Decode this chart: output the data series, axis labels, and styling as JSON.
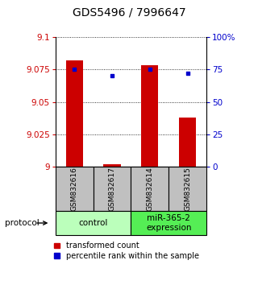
{
  "title": "GDS5496 / 7996647",
  "samples": [
    "GSM832616",
    "GSM832617",
    "GSM832614",
    "GSM832615"
  ],
  "bar_values": [
    9.082,
    9.002,
    9.078,
    9.038
  ],
  "percentile_values": [
    75,
    70,
    75,
    72
  ],
  "ylim_left": [
    9.0,
    9.1
  ],
  "ylim_right": [
    0,
    100
  ],
  "yticks_left": [
    9.0,
    9.025,
    9.05,
    9.075,
    9.1
  ],
  "ytick_labels_left": [
    "9",
    "9.025",
    "9.05",
    "9.075",
    "9.1"
  ],
  "yticks_right": [
    0,
    25,
    50,
    75,
    100
  ],
  "ytick_labels_right": [
    "0",
    "25",
    "50",
    "75",
    "100%"
  ],
  "bar_color": "#cc0000",
  "dot_color": "#0000cc",
  "groups": [
    {
      "label": "control",
      "samples": [
        0,
        1
      ],
      "color": "#bbffbb"
    },
    {
      "label": "miR-365-2\nexpression",
      "samples": [
        2,
        3
      ],
      "color": "#55ee55"
    }
  ],
  "protocol_label": "protocol",
  "legend_bar_label": "transformed count",
  "legend_dot_label": "percentile rank within the sample",
  "sample_box_color": "#c0c0c0",
  "title_fontsize": 10,
  "tick_fontsize": 7.5,
  "sample_fontsize": 6.5,
  "group_fontsize": 7.5,
  "legend_fontsize": 7
}
